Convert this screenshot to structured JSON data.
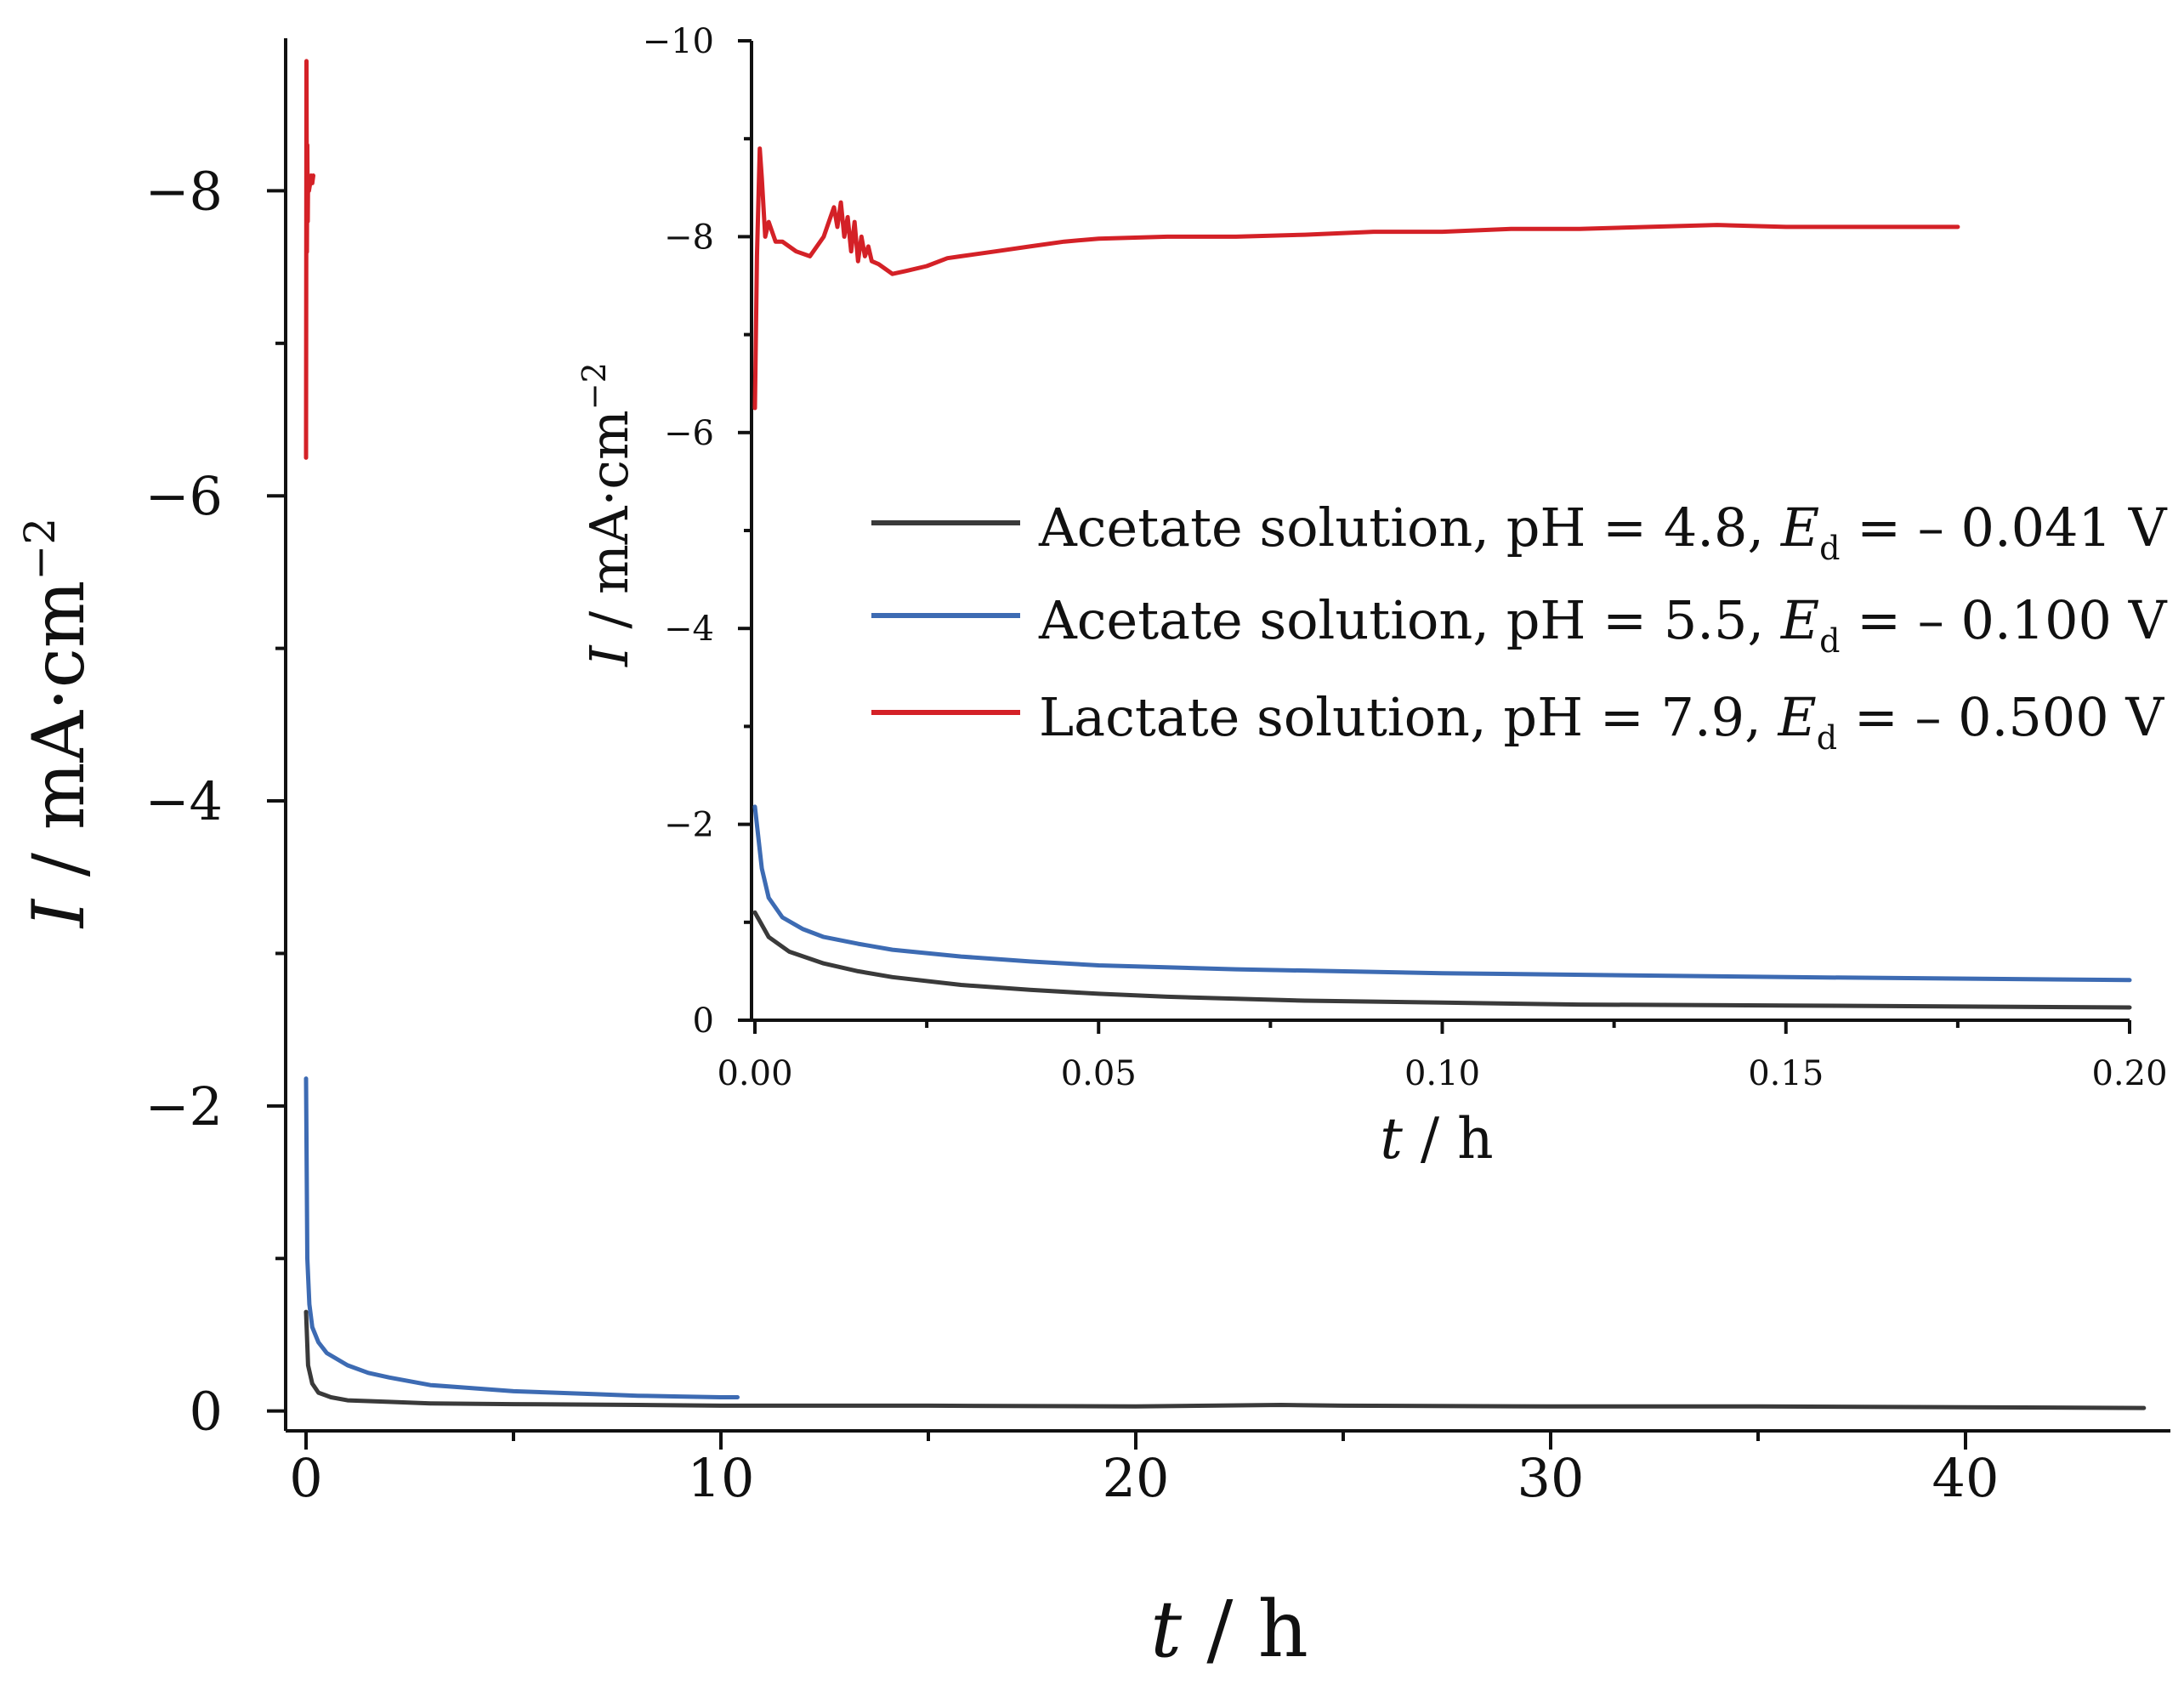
{
  "chart_data": [
    {
      "type": "line",
      "role": "main",
      "xlabel": {
        "italic": "t",
        "rest": " / h"
      },
      "ylabel": {
        "italic": "I",
        "rest": " / mA·cm",
        "sup": "−2"
      },
      "xlim": [
        -1,
        45.5
      ],
      "ylim": [
        0,
        -9
      ],
      "xticks": [
        0,
        10,
        20,
        30,
        40
      ],
      "xtick_labels": [
        "0",
        "10",
        "20",
        "30",
        "40"
      ],
      "xminor": [
        5,
        15,
        25,
        35
      ],
      "yticks": [
        0,
        -2,
        -4,
        -6,
        -8
      ],
      "ytick_labels": [
        "0",
        "−2",
        "−4",
        "−6",
        "−8"
      ],
      "yminor": [
        -1,
        -3,
        -5,
        -7
      ],
      "series": [
        {
          "name": "Acetate solution, pH = 4.8",
          "color": "#3a3a3a",
          "x": [
            0,
            0.05,
            0.15,
            0.3,
            0.6,
            1,
            2,
            3,
            5,
            8,
            10,
            15,
            20,
            23.5,
            25,
            30,
            35,
            40,
            44.3
          ],
          "y": [
            -0.65,
            -0.3,
            -0.18,
            -0.12,
            -0.09,
            -0.07,
            -0.06,
            -0.05,
            -0.045,
            -0.04,
            -0.035,
            -0.035,
            -0.03,
            -0.04,
            -0.035,
            -0.03,
            -0.03,
            -0.025,
            -0.02
          ]
        },
        {
          "name": "Acetate solution, pH = 5.5",
          "color": "#3d6bb3",
          "x": [
            0,
            0.03,
            0.08,
            0.15,
            0.3,
            0.5,
            1,
            1.5,
            2,
            3,
            4,
            5,
            6,
            7,
            8,
            9,
            10,
            10.4
          ],
          "y": [
            -2.18,
            -1.0,
            -0.7,
            -0.55,
            -0.45,
            -0.38,
            -0.3,
            -0.25,
            -0.22,
            -0.17,
            -0.15,
            -0.13,
            -0.12,
            -0.11,
            -0.1,
            -0.095,
            -0.09,
            -0.09
          ]
        },
        {
          "name": "Lactate solution, pH = 7.9",
          "color": "#d42127",
          "x": [
            0,
            0.01,
            0.02,
            0.03,
            0.04,
            0.05,
            0.07,
            0.1,
            0.12,
            0.15,
            0.175
          ],
          "y": [
            -6.25,
            -8.85,
            -7.6,
            -8.3,
            -7.8,
            -8.1,
            -8.0,
            -8.05,
            -8.1,
            -8.05,
            -8.1
          ]
        }
      ]
    },
    {
      "type": "line",
      "role": "inset",
      "xlabel": {
        "italic": "t",
        "rest": " / h"
      },
      "ylabel": {
        "italic": "I",
        "rest": " / mA·cm",
        "sup": "−2"
      },
      "xlim": [
        0,
        0.2
      ],
      "ylim": [
        0,
        -10
      ],
      "xticks": [
        0,
        0.05,
        0.1,
        0.15,
        0.2
      ],
      "xtick_labels": [
        "0.00",
        "0.05",
        "0.10",
        "0.15",
        "0.20"
      ],
      "xminor": [
        0.025,
        0.075,
        0.125,
        0.175
      ],
      "yticks": [
        0,
        -2,
        -4,
        -6,
        -8,
        -10
      ],
      "ytick_labels": [
        "0",
        "−2",
        "−4",
        "−6",
        "−8",
        "−10"
      ],
      "yminor": [
        -1,
        -3,
        -5,
        -7,
        -9
      ],
      "series": [
        {
          "name": "Acetate solution, pH = 4.8",
          "color": "#3a3a3a",
          "x": [
            0,
            0.002,
            0.005,
            0.01,
            0.015,
            0.02,
            0.03,
            0.04,
            0.05,
            0.06,
            0.08,
            0.1,
            0.12,
            0.15,
            0.2
          ],
          "y": [
            -1.1,
            -0.85,
            -0.7,
            -0.58,
            -0.5,
            -0.44,
            -0.36,
            -0.31,
            -0.27,
            -0.24,
            -0.2,
            -0.18,
            -0.16,
            -0.15,
            -0.13
          ]
        },
        {
          "name": "Acetate solution, pH = 5.5",
          "color": "#3d6bb3",
          "x": [
            0,
            0.001,
            0.002,
            0.004,
            0.007,
            0.01,
            0.015,
            0.02,
            0.03,
            0.04,
            0.05,
            0.07,
            0.1,
            0.15,
            0.2
          ],
          "y": [
            -2.18,
            -1.55,
            -1.25,
            -1.05,
            -0.93,
            -0.85,
            -0.78,
            -0.72,
            -0.65,
            -0.6,
            -0.56,
            -0.52,
            -0.48,
            -0.44,
            -0.41
          ]
        },
        {
          "name": "Lactate solution, pH = 7.9",
          "color": "#d42127",
          "x": [
            0,
            0.0003,
            0.0007,
            0.001,
            0.0015,
            0.002,
            0.003,
            0.004,
            0.006,
            0.008,
            0.01,
            0.011,
            0.0115,
            0.012,
            0.0125,
            0.013,
            0.0135,
            0.014,
            0.0145,
            0.015,
            0.0155,
            0.016,
            0.0165,
            0.017,
            0.018,
            0.02,
            0.022,
            0.025,
            0.028,
            0.03,
            0.035,
            0.04,
            0.045,
            0.05,
            0.06,
            0.07,
            0.08,
            0.09,
            0.1,
            0.11,
            0.12,
            0.13,
            0.14,
            0.15,
            0.16,
            0.17,
            0.175
          ],
          "y": [
            -6.25,
            -7.8,
            -8.9,
            -8.6,
            -8.0,
            -8.15,
            -7.95,
            -7.95,
            -7.85,
            -7.8,
            -8.0,
            -8.2,
            -8.3,
            -8.1,
            -8.35,
            -8.0,
            -8.2,
            -7.85,
            -8.15,
            -7.75,
            -8.0,
            -7.8,
            -7.9,
            -7.75,
            -7.72,
            -7.62,
            -7.65,
            -7.7,
            -7.78,
            -7.8,
            -7.85,
            -7.9,
            -7.95,
            -7.98,
            -8.0,
            -8.0,
            -8.02,
            -8.05,
            -8.05,
            -8.08,
            -8.08,
            -8.1,
            -8.12,
            -8.1,
            -8.1,
            -8.1,
            -8.1
          ]
        }
      ]
    }
  ],
  "legend": {
    "entries": [
      {
        "color": "#3a3a3a",
        "text": "Acetate solution, pH = 4.8, ",
        "sym": "E",
        "sub": "d",
        "value": " = – 0.041 V"
      },
      {
        "color": "#3d6bb3",
        "text": "Acetate solution, pH = 5.5, ",
        "sym": "E",
        "sub": "d",
        "value": " = – 0.100 V"
      },
      {
        "color": "#d42127",
        "text": "Lactate solution, pH = 7.9, ",
        "sym": "E",
        "sub": "d",
        "value": " = – 0.500 V"
      }
    ]
  }
}
